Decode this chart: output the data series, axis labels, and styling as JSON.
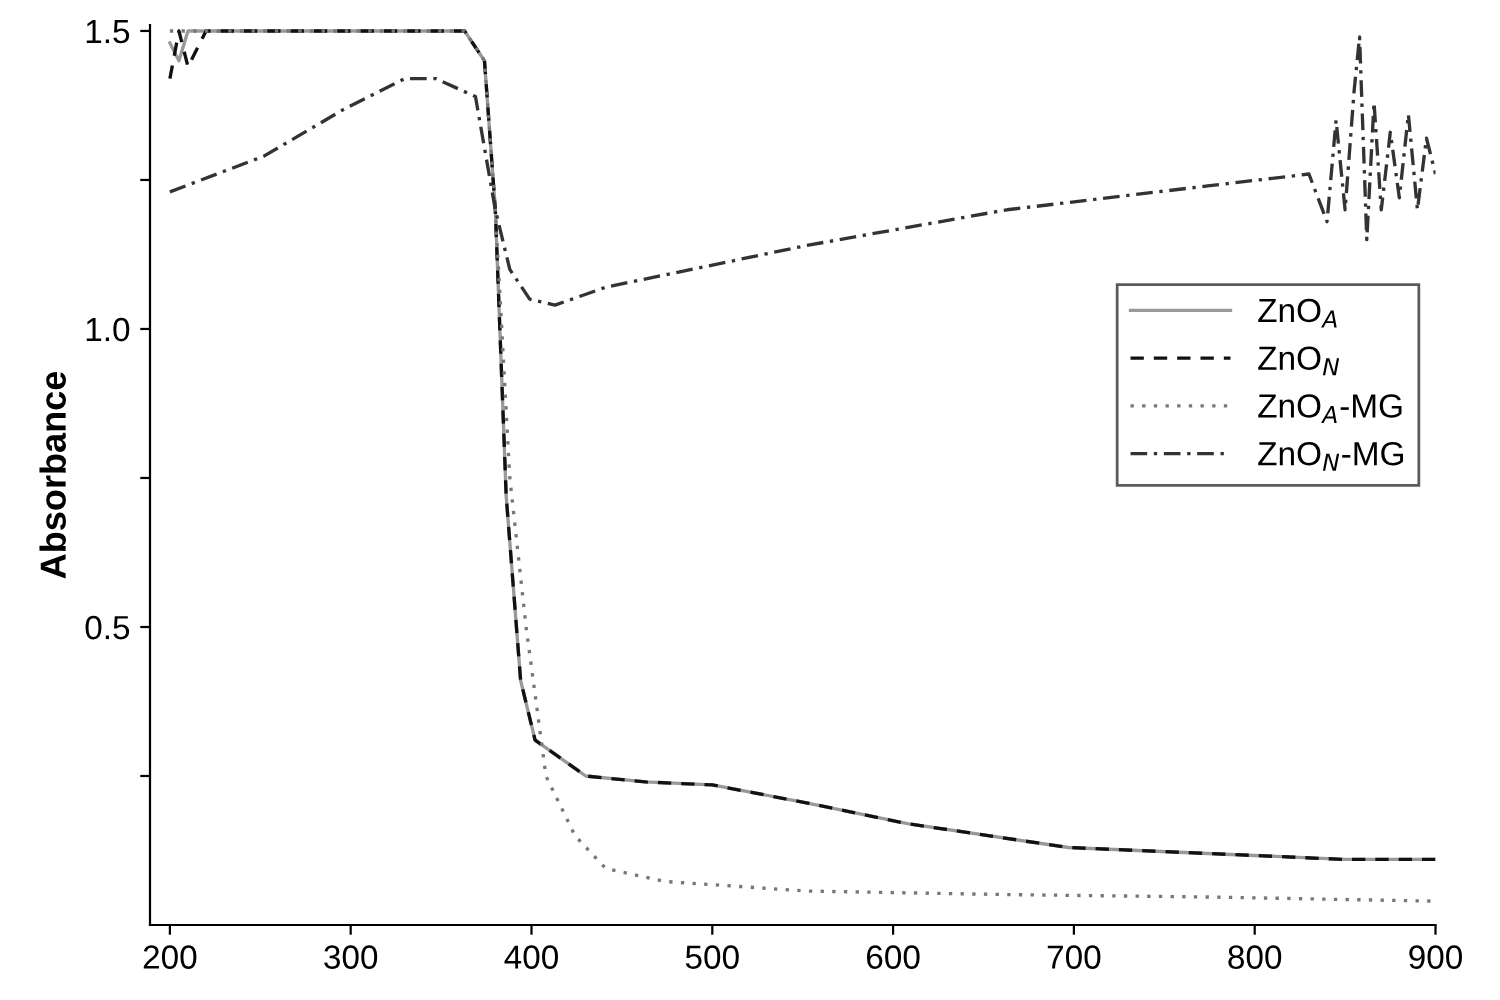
{
  "chart_data": {
    "type": "line",
    "ylabel": "Absorbance",
    "xlim": [
      189,
      900
    ],
    "xticks": [
      200,
      300,
      400,
      500,
      600,
      700,
      800,
      900
    ],
    "ylim": [
      0,
      1.51
    ],
    "yticks": [
      {
        "value": 0.25,
        "label": null
      },
      0.5,
      {
        "value": 0.75,
        "label": null
      },
      {
        "value": 1,
        "label": "1.0"
      },
      {
        "value": 1.25,
        "label": null
      },
      1.5
    ],
    "legend": "right",
    "grid": false,
    "series": [
      {
        "name": "ZnO$_{A}$",
        "color": "#999999",
        "line_style": "solid",
        "x": [
          200,
          205,
          210,
          220,
          260,
          300,
          340,
          363,
          374,
          380,
          386,
          394,
          402,
          430,
          463,
          500,
          552,
          608,
          697,
          774,
          850,
          900
        ],
        "values": [
          1.48,
          1.45,
          1.5,
          1.5,
          1.5,
          1.5,
          1.5,
          1.5,
          1.45,
          1.2,
          0.72,
          0.41,
          0.31,
          0.25,
          0.24,
          0.235,
          0.205,
          0.17,
          0.13,
          0.12,
          0.11,
          0.11
        ]
      },
      {
        "name": "ZnO$_{N}$",
        "color": "#111111",
        "line_style": "dashed",
        "x": [
          200,
          205,
          210,
          220,
          260,
          300,
          340,
          363,
          374,
          380,
          386,
          394,
          402,
          430,
          463,
          500,
          552,
          608,
          697,
          774,
          850,
          900
        ],
        "values": [
          1.42,
          1.5,
          1.44,
          1.5,
          1.5,
          1.5,
          1.5,
          1.5,
          1.45,
          1.2,
          0.72,
          0.41,
          0.31,
          0.25,
          0.24,
          0.235,
          0.205,
          0.17,
          0.13,
          0.12,
          0.11,
          0.11
        ]
      },
      {
        "name": "ZnO$_{A}$-MG",
        "color": "#777777",
        "line_style": "dotted",
        "x": [
          200,
          300,
          363,
          374,
          380,
          388,
          397,
          408,
          424,
          441,
          474,
          552,
          663,
          774,
          900
        ],
        "values": [
          1.5,
          1.5,
          1.5,
          1.45,
          1.2,
          0.75,
          0.5,
          0.25,
          0.15,
          0.095,
          0.073,
          0.057,
          0.051,
          0.047,
          0.04
        ]
      },
      {
        "name": "ZnO$_{N}$-MG",
        "color": "#333333",
        "line_style": "dashdot",
        "x": [
          200,
          252,
          297,
          330,
          347,
          369,
          380,
          388,
          399,
          413,
          441,
          552,
          663,
          774,
          830,
          840,
          845,
          850,
          855,
          858,
          862,
          866,
          870,
          875,
          880,
          885,
          890,
          895,
          900
        ],
        "values": [
          1.23,
          1.29,
          1.37,
          1.42,
          1.42,
          1.39,
          1.2,
          1.1,
          1.05,
          1.04,
          1.07,
          1.14,
          1.2,
          1.24,
          1.26,
          1.18,
          1.35,
          1.2,
          1.4,
          1.49,
          1.15,
          1.38,
          1.2,
          1.33,
          1.22,
          1.36,
          1.2,
          1.32,
          1.26
        ]
      }
    ]
  }
}
